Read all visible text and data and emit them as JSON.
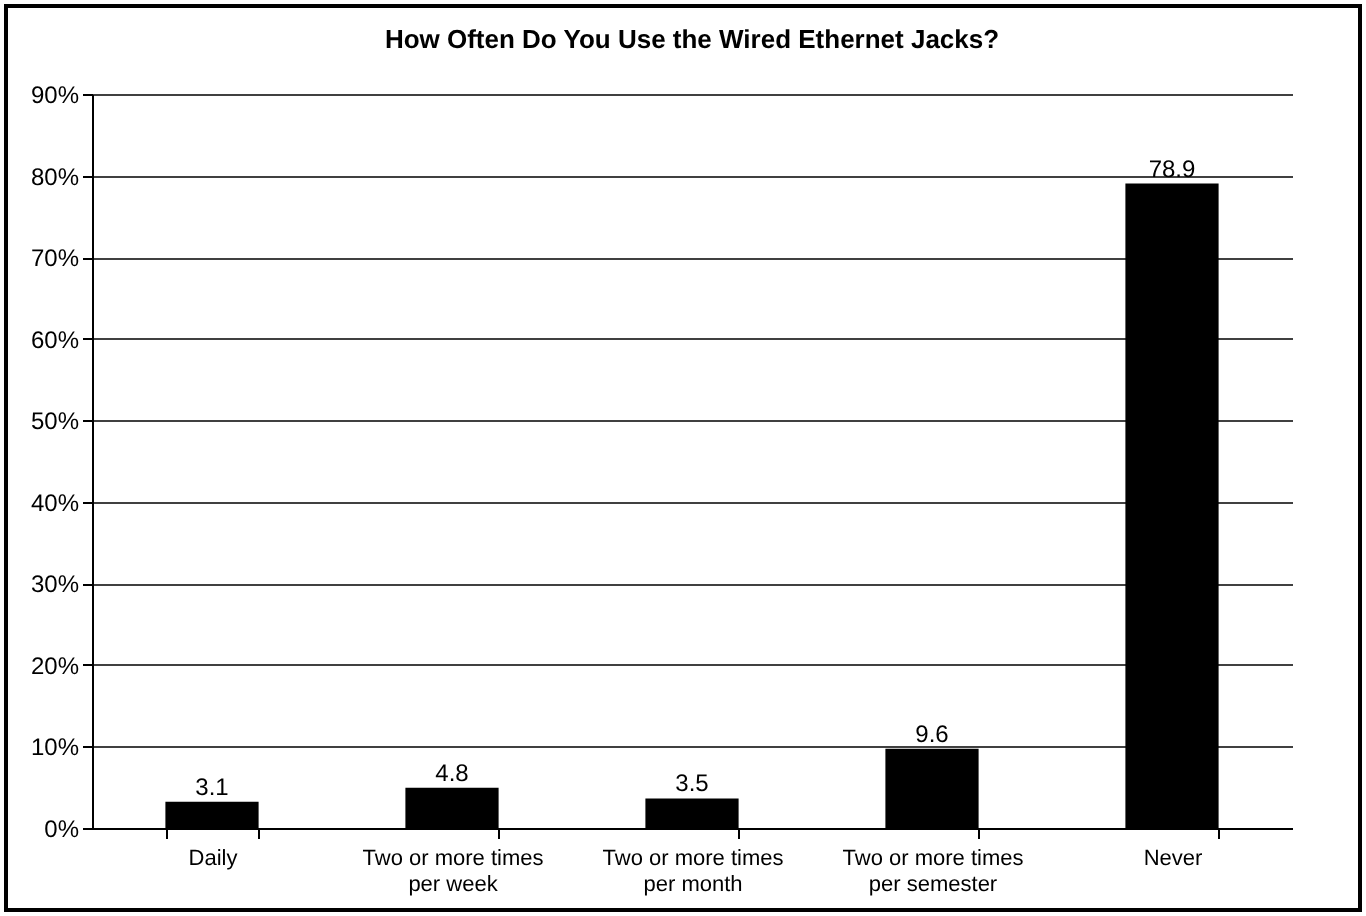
{
  "chart_data": {
    "type": "bar",
    "title": "How Often Do You Use the Wired Ethernet Jacks?",
    "categories": [
      "Daily",
      "Two or more times per week",
      "Two or more times per month",
      "Two or more times per semester",
      "Never"
    ],
    "values": [
      3.1,
      4.8,
      3.5,
      9.6,
      78.9
    ],
    "color": "#000000",
    "data_labels": true,
    "ylim": [
      0,
      90
    ],
    "yticks": [
      {
        "value": 0,
        "label": "0%"
      },
      {
        "value": 10,
        "label": "10%"
      },
      {
        "value": 20,
        "label": "20%"
      },
      {
        "value": 30,
        "label": "30%"
      },
      {
        "value": 40,
        "label": "40%"
      },
      {
        "value": 50,
        "label": "50%"
      },
      {
        "value": 60,
        "label": "60%"
      },
      {
        "value": 70,
        "label": "70%"
      },
      {
        "value": 80,
        "label": "80%"
      },
      {
        "value": 90,
        "label": "90%"
      }
    ],
    "grid": "y"
  }
}
